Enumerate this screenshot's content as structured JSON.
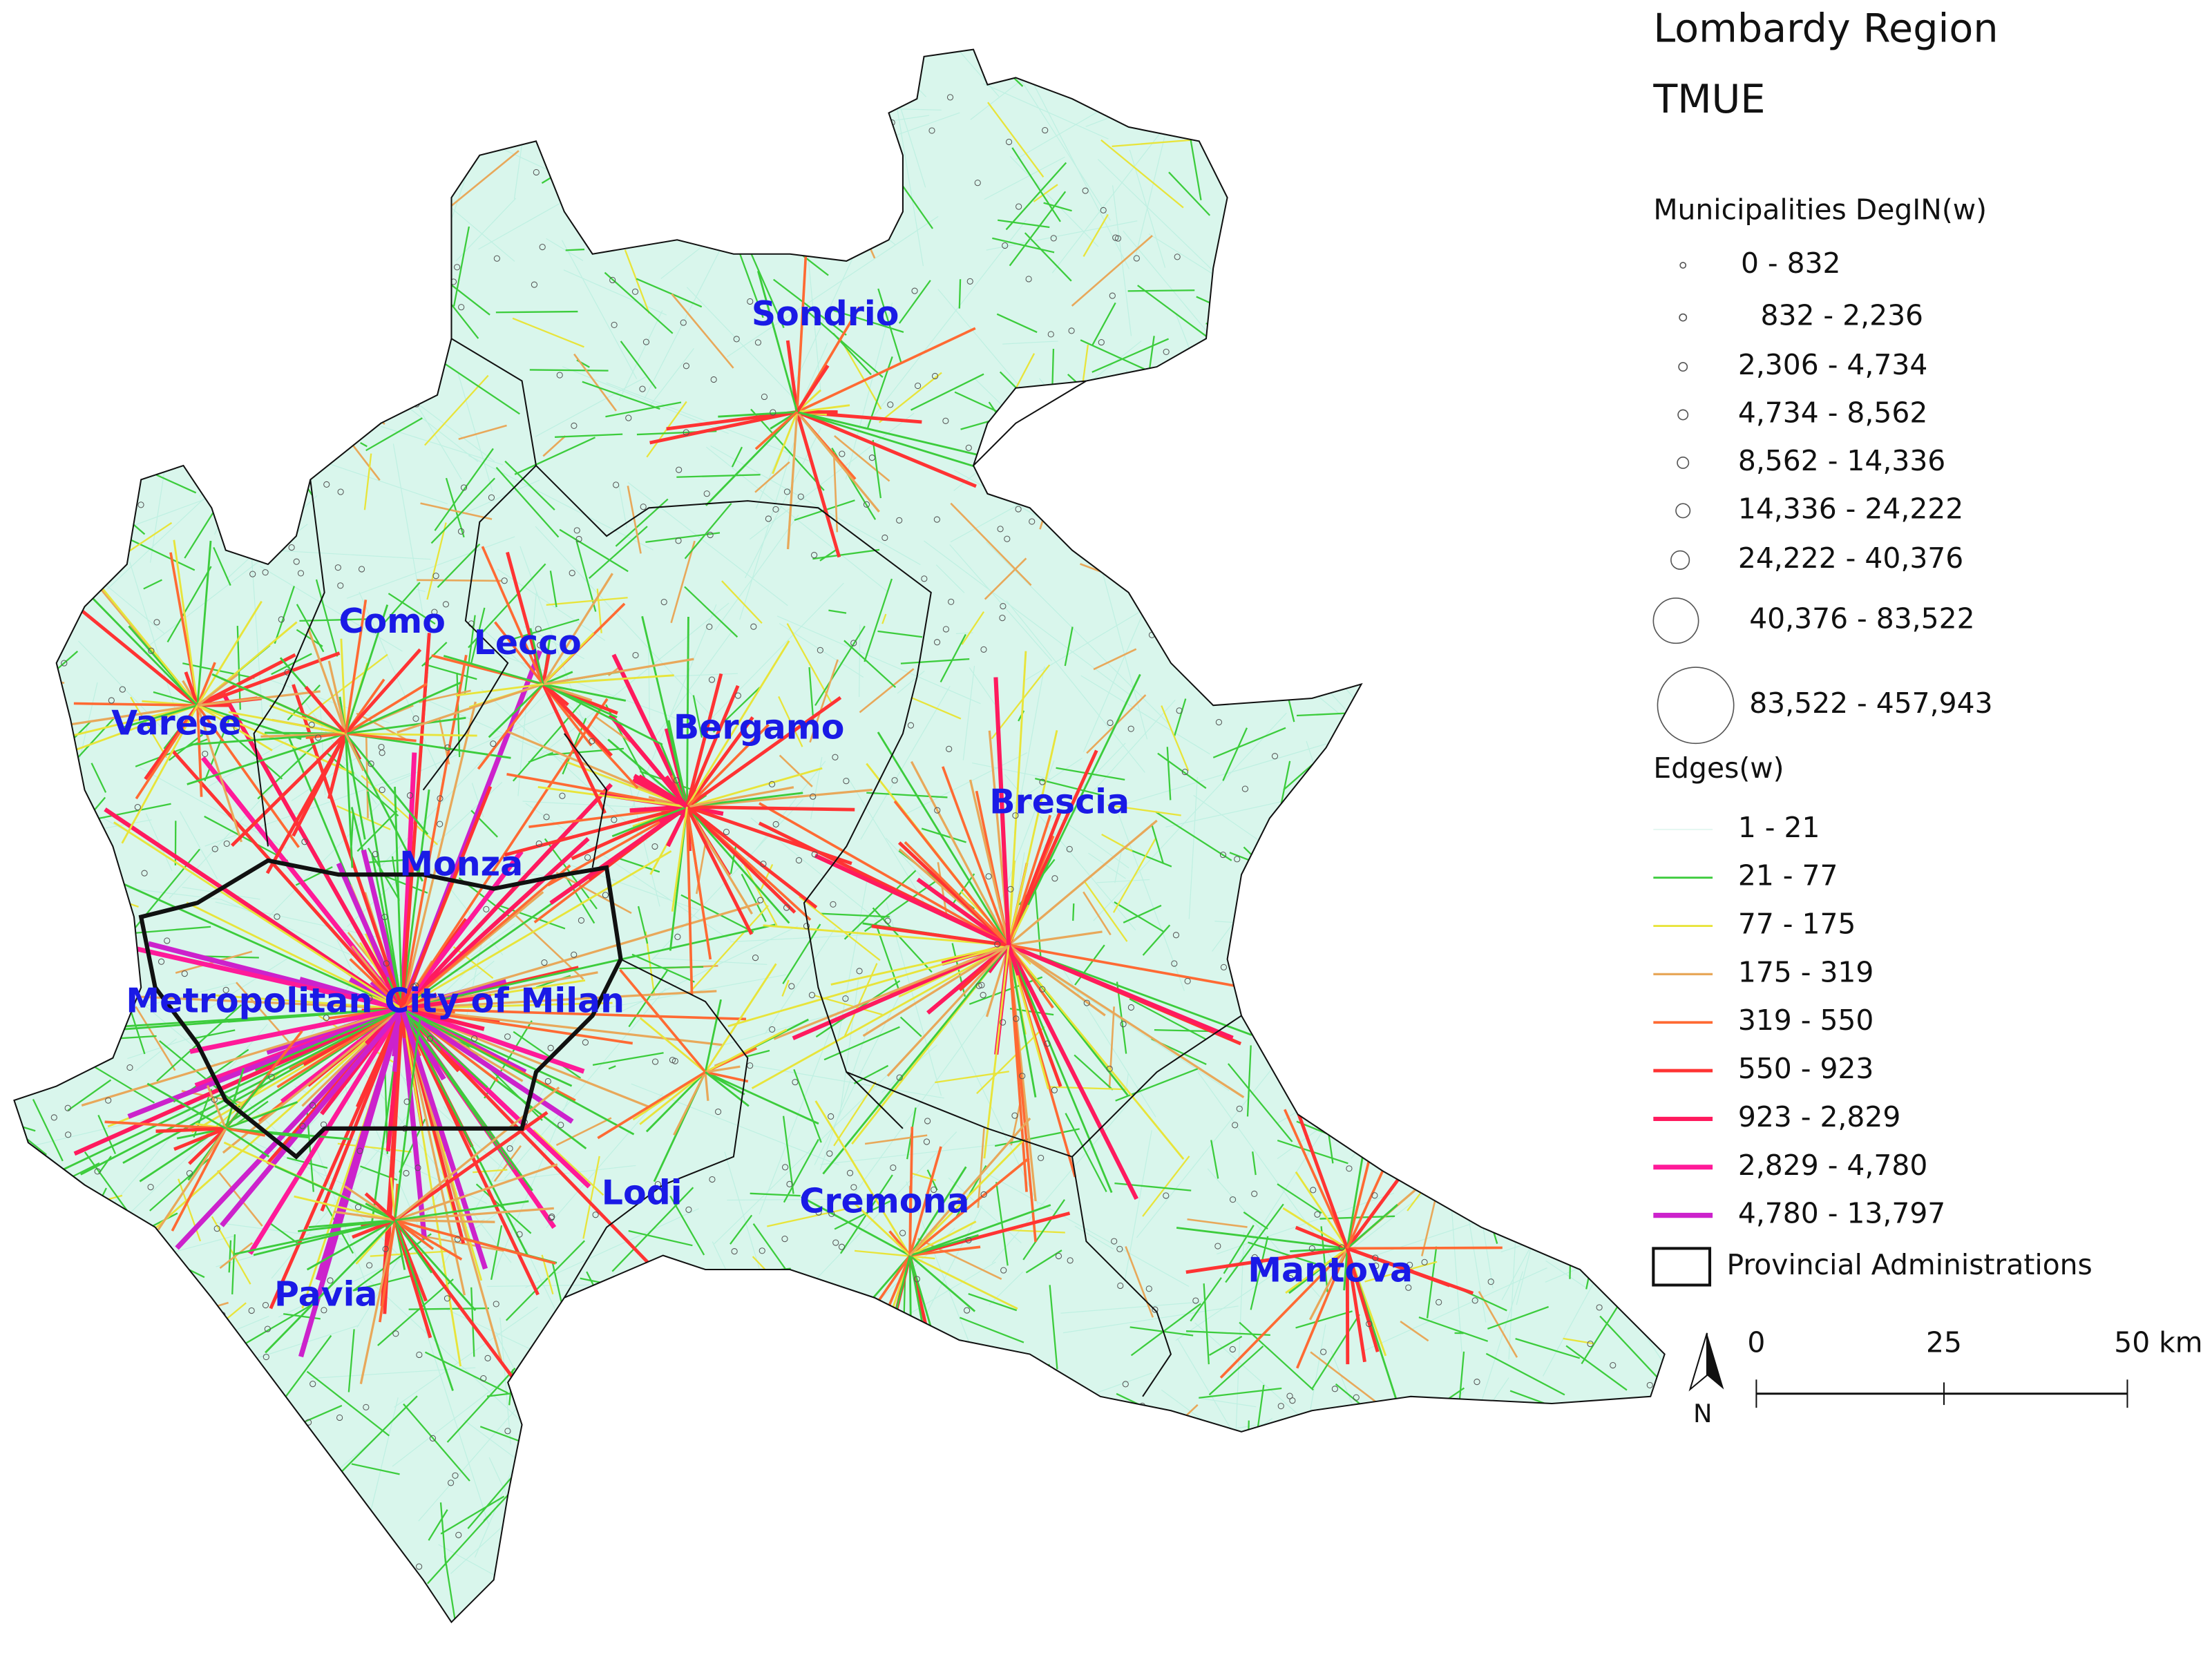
{
  "title": [
    "Lombardy Region",
    "TMUE"
  ],
  "legend": {
    "nodes_title": "Municipalities DegIN(w)",
    "node_classes": [
      "0 - 832",
      "832 - 2,236",
      "2,306 - 4,734",
      "4,734 - 8,562",
      "8,562 - 14,336",
      "14,336 - 24,222",
      "24,222 - 40,376",
      "40,376 - 83,522",
      "83,522 - 457,943"
    ],
    "edges_title": "Edges(w)",
    "edge_classes": [
      {
        "label": "1 - 21",
        "color": "#e4f7f1"
      },
      {
        "label": "21 - 77",
        "color": "#3ccc3c"
      },
      {
        "label": "77 - 175",
        "color": "#e8e43a"
      },
      {
        "label": "175 - 319",
        "color": "#e8a85a"
      },
      {
        "label": "319 - 550",
        "color": "#ff6a33"
      },
      {
        "label": "550 - 923",
        "color": "#ff3333"
      },
      {
        "label": "923 - 2,829",
        "color": "#ff1a5e"
      },
      {
        "label": "2,829 - 4,780",
        "color": "#ff1a99"
      },
      {
        "label": "4,780 - 13,797",
        "color": "#cc22cc"
      }
    ],
    "boundary": "Provincial Administrations"
  },
  "provinces": [
    "Sondrio",
    "Como",
    "Lecco",
    "Varese",
    "Bergamo",
    "Brescia",
    "Monza",
    "Metropolitan City of Milan",
    "Lodi",
    "Cremona",
    "Pavia",
    "Mantova"
  ],
  "scale_bar": [
    "0",
    "25",
    "50 km"
  ],
  "north": "N"
}
